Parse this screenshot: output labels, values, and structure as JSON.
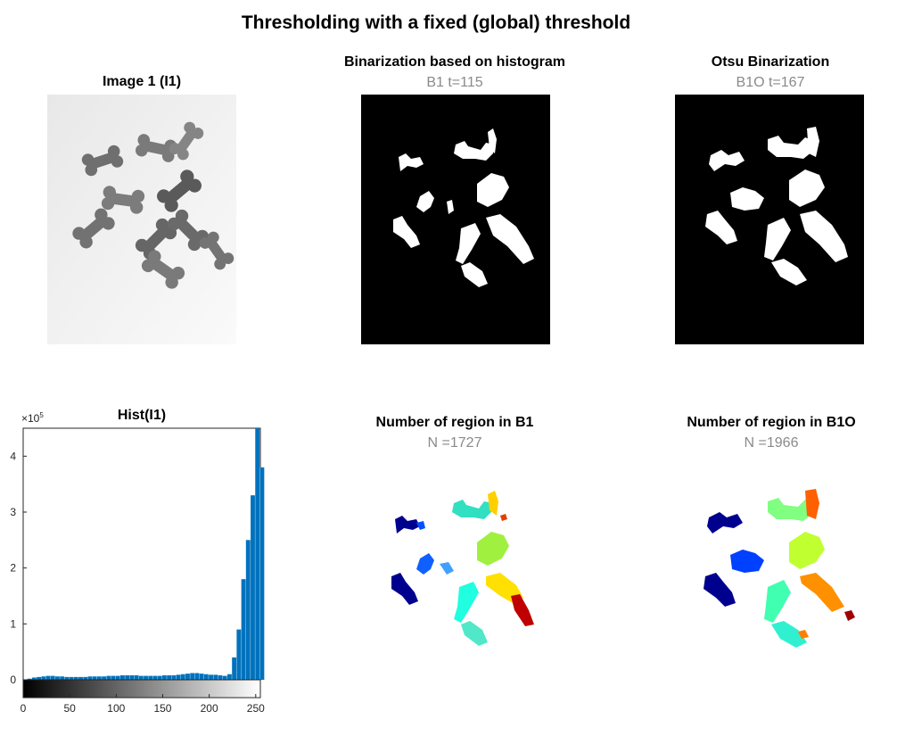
{
  "figure": {
    "title": "Thresholding with a fixed (global) threshold"
  },
  "panels": {
    "image1": {
      "title": "Image 1 (I1)"
    },
    "b1": {
      "title": "Binarization based on histogram",
      "subtitle": "B1 t=115"
    },
    "b1o": {
      "title": "Otsu Binarization",
      "subtitle": "B1O t=167"
    },
    "hist": {
      "title": "Hist(I1)",
      "exponent_base": "×10",
      "exponent_power": "5"
    },
    "regions_b1": {
      "title": "Number of region in B1",
      "subtitle": "N =1727"
    },
    "regions_b1o": {
      "title": "Number of region in B1O",
      "subtitle": "N =1966"
    }
  },
  "colors": {
    "bar": "#0072BD",
    "background_image": "#f2f2f2",
    "bone": "#707070",
    "binary_bg": "#000000",
    "binary_fg": "#ffffff"
  },
  "chart_data": [
    {
      "type": "bar",
      "title": "Hist(I1)",
      "xlabel": "",
      "ylabel": "",
      "xlim": [
        0,
        255
      ],
      "ylim": [
        0,
        450000
      ],
      "y_scale_label": "×10^5",
      "x_ticks": [
        0,
        50,
        100,
        150,
        200,
        250
      ],
      "y_ticks": [
        0,
        1,
        2,
        3,
        4
      ],
      "x": [
        0,
        5,
        10,
        15,
        20,
        25,
        30,
        35,
        40,
        45,
        50,
        55,
        60,
        65,
        70,
        75,
        80,
        85,
        90,
        95,
        100,
        105,
        110,
        115,
        120,
        125,
        130,
        135,
        140,
        145,
        150,
        155,
        160,
        165,
        170,
        175,
        180,
        185,
        190,
        195,
        200,
        205,
        210,
        215,
        220,
        225,
        230,
        235,
        240,
        245,
        250,
        255
      ],
      "values": [
        0,
        2000,
        4000,
        5000,
        6000,
        7000,
        7000,
        6000,
        6000,
        5000,
        5000,
        5000,
        5000,
        5000,
        6000,
        6000,
        6000,
        6000,
        7000,
        7000,
        7000,
        8000,
        8000,
        8000,
        8000,
        7000,
        7000,
        7000,
        7000,
        7000,
        8000,
        8000,
        8000,
        9000,
        10000,
        11000,
        12000,
        12000,
        11000,
        10000,
        9000,
        9000,
        8000,
        7000,
        10000,
        40000,
        90000,
        180000,
        250000,
        330000,
        450000,
        380000
      ]
    }
  ]
}
